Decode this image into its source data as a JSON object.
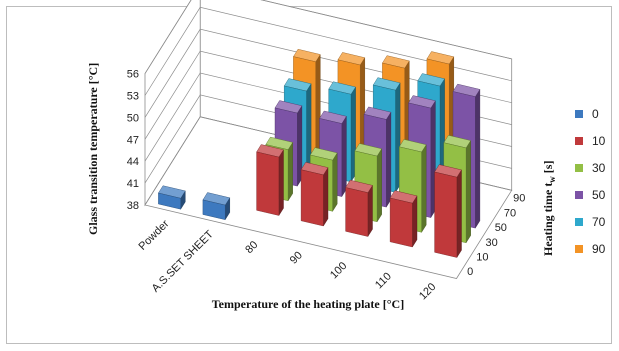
{
  "chart_data": {
    "type": "bar",
    "subtype": "3d-bar",
    "title": "",
    "xlabel": "Temperature of the heating plate [°C]",
    "ylabel": "Glass transition temperature [°C]",
    "zlabel": "Heating time t",
    "zlabel_sub": "w",
    "zlabel_unit": " [s]",
    "categories": [
      "Powder",
      "A.S.SET SHEET",
      "80",
      "90",
      "100",
      "110",
      "120"
    ],
    "yticks": [
      "38",
      "41",
      "44",
      "47",
      "50",
      "53",
      "56"
    ],
    "ylim": [
      38,
      56
    ],
    "depth_ticks": [
      "0",
      "10",
      "30",
      "50",
      "70",
      "90"
    ],
    "grid": true,
    "legend_position": "right",
    "series": [
      {
        "name": "0",
        "color": "#3d79bf",
        "values": [
          39.5,
          40,
          null,
          null,
          null,
          null,
          null
        ]
      },
      {
        "name": "10",
        "color": "#c0393b",
        "values": [
          null,
          null,
          46,
          45,
          44,
          44,
          49
        ]
      },
      {
        "name": "30",
        "color": "#93bf45",
        "values": [
          null,
          null,
          45,
          45,
          47,
          49,
          51
        ]
      },
      {
        "name": "50",
        "color": "#7c53a6",
        "values": [
          null,
          null,
          48,
          48,
          50,
          53,
          56
        ]
      },
      {
        "name": "70",
        "color": "#2ea8cc",
        "values": [
          null,
          null,
          49,
          50,
          52,
          54,
          null
        ]
      },
      {
        "name": "90",
        "color": "#f39325",
        "values": [
          null,
          null,
          51,
          52,
          53,
          55,
          null
        ]
      }
    ]
  }
}
